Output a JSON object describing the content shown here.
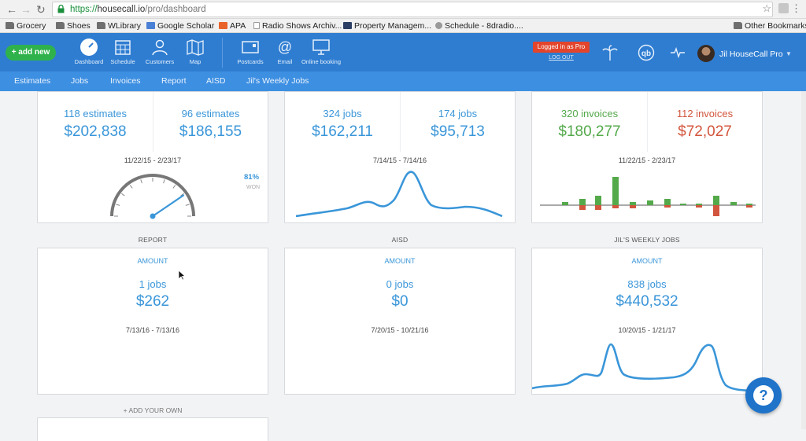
{
  "browser": {
    "url_secure": "https://",
    "url_host": "housecall.io",
    "url_path": "/pro/dashboard"
  },
  "bookmarks": [
    {
      "label": "Grocery",
      "icon": "folder-icon"
    },
    {
      "label": "Shoes",
      "icon": "folder-icon"
    },
    {
      "label": "WLibrary",
      "icon": "folder-icon"
    },
    {
      "label": "Google Scholar",
      "icon": "scholar-icon"
    },
    {
      "label": "APA",
      "icon": "apa-icon"
    },
    {
      "label": "Radio Shows Archiv...",
      "icon": "page-icon"
    },
    {
      "label": "Property Managem...",
      "icon": "pm-icon"
    },
    {
      "label": "Schedule - 8dradio....",
      "icon": "globe-icon"
    },
    {
      "label": "Other Bookmarks",
      "icon": "folder-icon"
    }
  ],
  "header": {
    "add_new": "+ add new",
    "nav": [
      "Dashboard",
      "Schedule",
      "Customers",
      "Map",
      "Postcards",
      "Email",
      "Online booking"
    ],
    "login_badge": "Logged in as Pro",
    "logout": "LOG OUT",
    "user_name": "Jil HouseCall Pro",
    "accent": "#2f7dd1"
  },
  "subnav": [
    "Estimates",
    "Jobs",
    "Invoices",
    "Report",
    "AISD",
    "Jil's Weekly Jobs"
  ],
  "cards": {
    "estimates": {
      "left_count": "118 estimates",
      "left_amount": "$202,838",
      "right_count": "96 estimates",
      "right_amount": "$186,155",
      "date_range": "11/22/15 - 2/23/17",
      "won_pct": "81%",
      "won_label": "WON",
      "gauge_fraction": 0.81
    },
    "jobs": {
      "left_count": "324 jobs",
      "left_amount": "$162,211",
      "right_count": "174 jobs",
      "right_amount": "$95,713",
      "date_range": "7/14/15 - 7/14/16"
    },
    "invoices": {
      "left_count": "320 invoices",
      "left_amount": "$180,277",
      "right_count": "112 invoices",
      "right_amount": "$72,027",
      "date_range": "11/22/15 - 2/23/17",
      "paid_color": "#54a94b",
      "unpaid_color": "#d2553d"
    },
    "report": {
      "title": "REPORT",
      "amount_label": "AMOUNT",
      "count": "1 jobs",
      "amount": "$262",
      "date_range": "7/13/16 - 7/13/16"
    },
    "aisd": {
      "title": "AISD",
      "amount_label": "AMOUNT",
      "count": "0 jobs",
      "amount": "$0",
      "date_range": "7/20/15 - 10/21/16"
    },
    "weekly": {
      "title": "JIL'S WEEKLY JOBS",
      "amount_label": "AMOUNT",
      "count": "838 jobs",
      "amount": "$440,532",
      "date_range": "10/20/15 - 1/21/17"
    }
  },
  "add_your_own": "+ ADD YOUR OWN",
  "help": "?"
}
